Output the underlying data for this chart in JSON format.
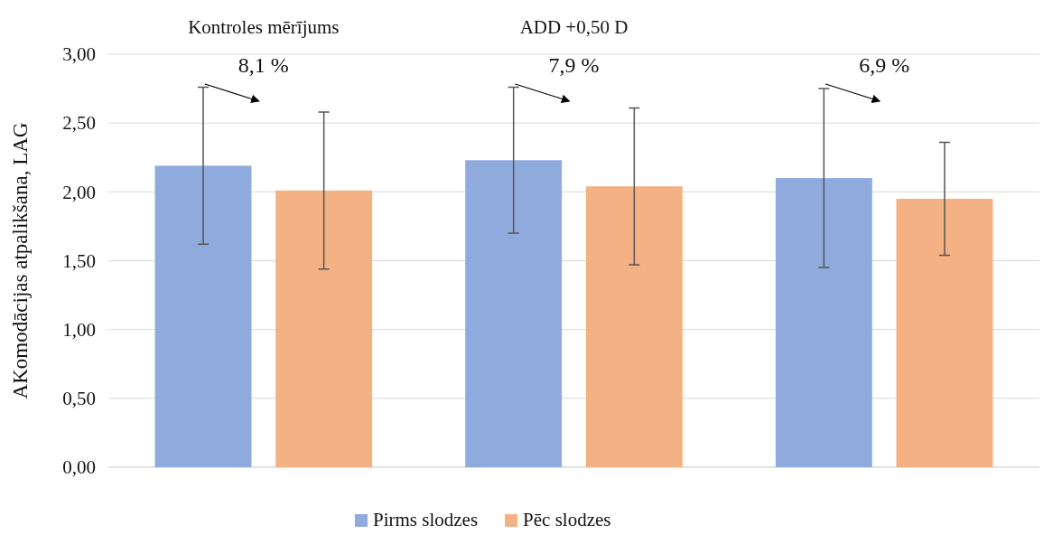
{
  "chart_data": {
    "type": "bar",
    "ylabel": "AKomodācijas atpalikšana, LAG",
    "categories": [
      "Kontroles mērījums",
      "ADD +0,50 D",
      null
    ],
    "series": [
      {
        "name": "Pirms slodzes",
        "color": "#8faadc",
        "values": [
          2.19,
          2.23,
          2.1
        ],
        "errors": [
          0.57,
          0.53,
          0.65
        ]
      },
      {
        "name": "Pēc slodzes",
        "color": "#f4b183",
        "values": [
          2.01,
          2.04,
          1.95
        ],
        "errors": [
          0.57,
          0.57,
          0.41
        ]
      }
    ],
    "ylim": [
      0,
      3
    ],
    "yticks": [
      {
        "value": 0,
        "label": "0,00"
      },
      {
        "value": 0.5,
        "label": "0,50"
      },
      {
        "value": 1,
        "label": "1,00"
      },
      {
        "value": 1.5,
        "label": "1,50"
      },
      {
        "value": 2,
        "label": "2,00"
      },
      {
        "value": 2.5,
        "label": "2,50"
      },
      {
        "value": 3,
        "label": "3,00"
      }
    ],
    "grid": "y",
    "legend": "bottom",
    "annotations": [
      "8,1 %",
      "7,9 %",
      "6,9 %"
    ]
  }
}
